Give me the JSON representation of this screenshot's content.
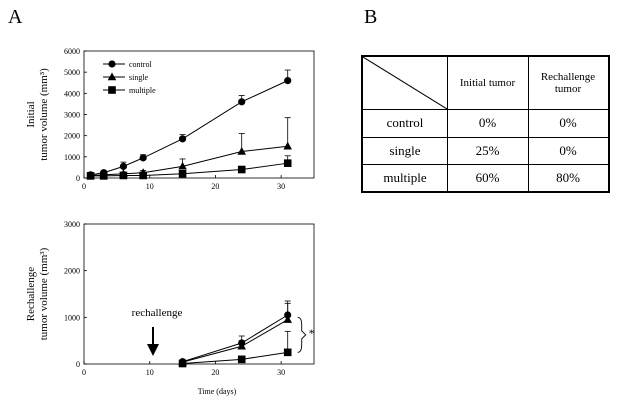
{
  "panel_labels": {
    "a": "A",
    "b": "B"
  },
  "chart_data": [
    {
      "type": "line",
      "ylabel_line1": "Initial",
      "ylabel_line2": "tumor volume (mm³)",
      "xlabel": "",
      "xlim": [
        0,
        35
      ],
      "ylim": [
        0,
        6000
      ],
      "xticks": [
        0,
        10,
        20,
        30
      ],
      "yticks": [
        0,
        1000,
        2000,
        3000,
        4000,
        5000,
        6000
      ],
      "legend_position": "top-left",
      "series": [
        {
          "name": "control",
          "marker": "circle",
          "x": [
            1,
            3,
            6,
            9,
            15,
            24,
            31
          ],
          "y": [
            150,
            250,
            550,
            950,
            1850,
            3600,
            4600
          ],
          "err": [
            50,
            80,
            200,
            150,
            200,
            300,
            500
          ]
        },
        {
          "name": "single",
          "marker": "triangle",
          "x": [
            1,
            3,
            6,
            9,
            15,
            24,
            31
          ],
          "y": [
            120,
            150,
            200,
            250,
            550,
            1250,
            1500
          ],
          "err": [
            30,
            40,
            80,
            100,
            350,
            850,
            1350
          ]
        },
        {
          "name": "multiple",
          "marker": "square",
          "x": [
            1,
            3,
            6,
            9,
            15,
            24,
            31
          ],
          "y": [
            100,
            100,
            120,
            120,
            200,
            400,
            700
          ],
          "err": [
            30,
            30,
            40,
            40,
            80,
            150,
            350
          ]
        }
      ]
    },
    {
      "type": "line",
      "ylabel_line1": "Rechallenge",
      "ylabel_line2": "tumor volume (mm³)",
      "xlabel": "Time (days)",
      "xlim": [
        0,
        35
      ],
      "ylim": [
        0,
        3000
      ],
      "xticks": [
        0,
        10,
        20,
        30
      ],
      "yticks": [
        0,
        1000,
        2000,
        3000
      ],
      "annotation": {
        "label": "rechallenge",
        "x": 10.5
      },
      "significance_marker": "*",
      "series": [
        {
          "name": "control",
          "marker": "circle",
          "x": [
            15,
            24,
            31
          ],
          "y": [
            50,
            450,
            1050
          ],
          "err": [
            30,
            150,
            300
          ]
        },
        {
          "name": "single",
          "marker": "triangle",
          "x": [
            15,
            24,
            31
          ],
          "y": [
            40,
            380,
            950
          ],
          "err": [
            30,
            120,
            350
          ]
        },
        {
          "name": "multiple",
          "marker": "square",
          "x": [
            15,
            24,
            31
          ],
          "y": [
            10,
            100,
            250
          ],
          "err": [
            10,
            60,
            450
          ]
        }
      ]
    }
  ],
  "table": {
    "col_headers": [
      "Initial tumor",
      "Rechallenge tumor"
    ],
    "rows": [
      {
        "group": "control",
        "initial": "0%",
        "rechallenge": "0%"
      },
      {
        "group": "single",
        "initial": "25%",
        "rechallenge": "0%"
      },
      {
        "group": "multiple",
        "initial": "60%",
        "rechallenge": "80%"
      }
    ]
  }
}
